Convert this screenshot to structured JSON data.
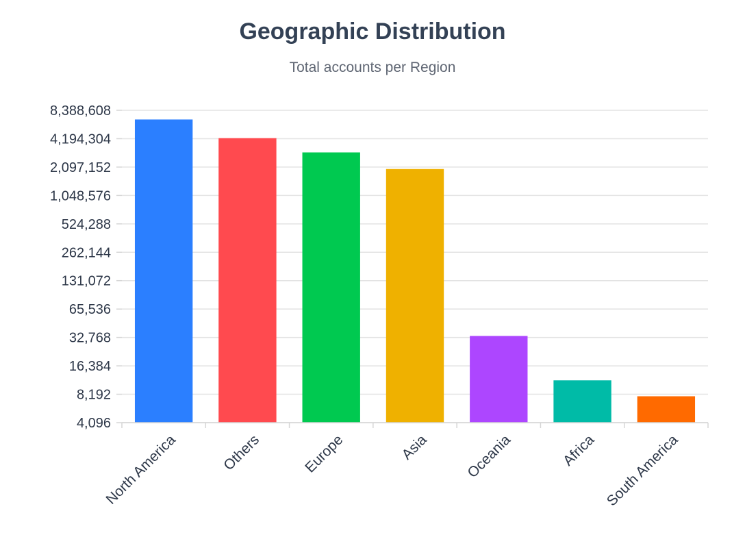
{
  "chart_data": {
    "type": "bar",
    "title": "Geographic Distribution",
    "subtitle": "Total accounts per Region",
    "xlabel": "",
    "ylabel": "",
    "y_scale": "log2",
    "ylim": [
      4096,
      8388608
    ],
    "y_ticks": [
      "4,096",
      "8,192",
      "16,384",
      "32,768",
      "65,536",
      "131,072",
      "262,144",
      "524,288",
      "1,048,576",
      "2,097,152",
      "4,194,304",
      "8,388,608"
    ],
    "y_tick_values": [
      4096,
      8192,
      16384,
      32768,
      65536,
      131072,
      262144,
      524288,
      1048576,
      2097152,
      4194304,
      8388608
    ],
    "grid": true,
    "legend": "none",
    "categories": [
      "North America",
      "Others",
      "Europe",
      "Asia",
      "Oceania",
      "Africa",
      "South America"
    ],
    "values": [
      6700000,
      4250000,
      3000000,
      2000000,
      34000,
      11500,
      7800
    ],
    "colors": [
      "#2b7fff",
      "#ff4a4f",
      "#00c950",
      "#efb100",
      "#ad46ff",
      "#00bba7",
      "#ff6a00"
    ]
  }
}
